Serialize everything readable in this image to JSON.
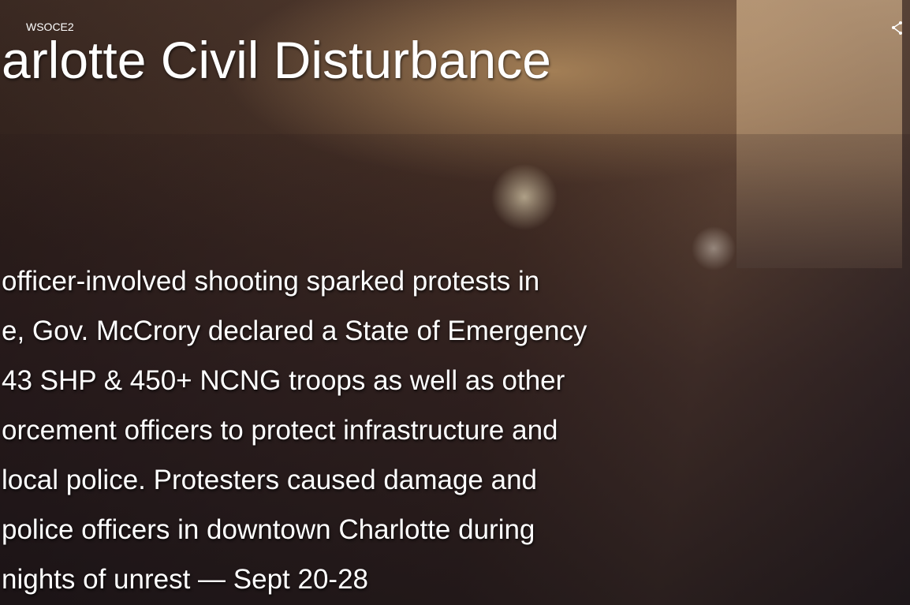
{
  "header": {
    "source": "WSOCE2",
    "title": "arlotte Civil Disturbance"
  },
  "body": {
    "lines": [
      "officer-involved shooting sparked protests in",
      "e, Gov. McCrory declared a State of Emergency",
      "43 SHP & 450+ NCNG troops as well as other",
      "orcement officers to protect infrastructure and",
      "local police. Protesters caused damage and",
      "police officers in downtown Charlotte during",
      "nights of unrest — Sept 20-28"
    ]
  }
}
